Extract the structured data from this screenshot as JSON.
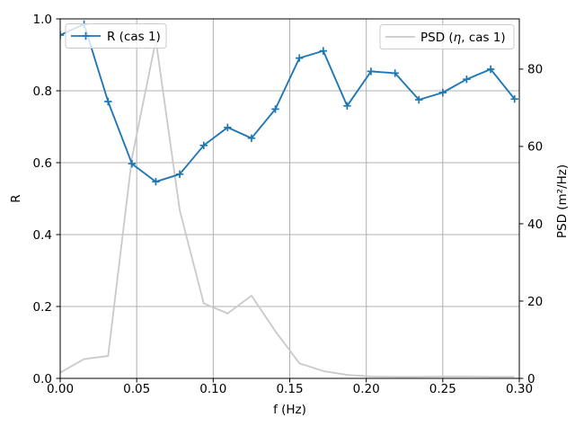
{
  "figure": {
    "background": "#ffffff"
  },
  "colors": {
    "r_line": "#1f77b4",
    "psd_line": "#c9c9c9",
    "grid": "#b0b0b0",
    "spine": "#000000",
    "text": "#000000",
    "legend_border": "#cccccc"
  },
  "chart_data": {
    "type": "line",
    "title": "",
    "xlabel": "f (Hz)",
    "ylabel_left": "R",
    "ylabel_right": "PSD (m²/Hz)",
    "xlim": [
      0.0,
      0.3
    ],
    "ylim_left": [
      0.0,
      1.0
    ],
    "ylim_right": [
      0.0,
      93.0
    ],
    "grid": true,
    "legend_positions": [
      "upper left",
      "upper right"
    ],
    "xticks": [
      0.0,
      0.05,
      0.1,
      0.15,
      0.2,
      0.25,
      0.3
    ],
    "xtick_labels": [
      "0.00",
      "0.05",
      "0.10",
      "0.15",
      "0.20",
      "0.25",
      "0.30"
    ],
    "yticks_left": [
      0.0,
      0.2,
      0.4,
      0.6,
      0.8,
      1.0
    ],
    "ytick_labels_left": [
      "0.0",
      "0.2",
      "0.4",
      "0.6",
      "0.8",
      "1.0"
    ],
    "yticks_right": [
      0,
      20,
      40,
      60,
      80
    ],
    "ytick_labels_right": [
      "0",
      "20",
      "40",
      "60",
      "80"
    ],
    "x": [
      0.0,
      0.0156,
      0.0313,
      0.0469,
      0.0625,
      0.0781,
      0.0938,
      0.1094,
      0.125,
      0.1406,
      0.1563,
      0.1719,
      0.1875,
      0.2031,
      0.2188,
      0.2344,
      0.25,
      0.2656,
      0.2813,
      0.2969
    ],
    "series": [
      {
        "name": "R (cas 1)",
        "legend_label": "R (cas 1)",
        "axis": "left",
        "color": "#1f77b4",
        "marker": "plus",
        "values": [
          0.955,
          0.985,
          0.77,
          0.597,
          0.547,
          0.568,
          0.648,
          0.698,
          0.668,
          0.749,
          0.891,
          0.911,
          0.758,
          0.854,
          0.849,
          0.775,
          0.795,
          0.832,
          0.86,
          0.777
        ]
      },
      {
        "name": "PSD (eta, cas 1)",
        "legend_label_parts": {
          "prefix": "PSD (",
          "eta": "η",
          "suffix": ", cas 1)"
        },
        "axis": "right",
        "color": "#c9c9c9",
        "marker": "none",
        "values": [
          1.5,
          5.0,
          5.8,
          57.0,
          87.5,
          43.5,
          19.4,
          16.8,
          21.4,
          12.2,
          3.9,
          1.9,
          0.9,
          0.5,
          0.4,
          0.4,
          0.5,
          0.5,
          0.4,
          0.4
        ]
      }
    ]
  }
}
